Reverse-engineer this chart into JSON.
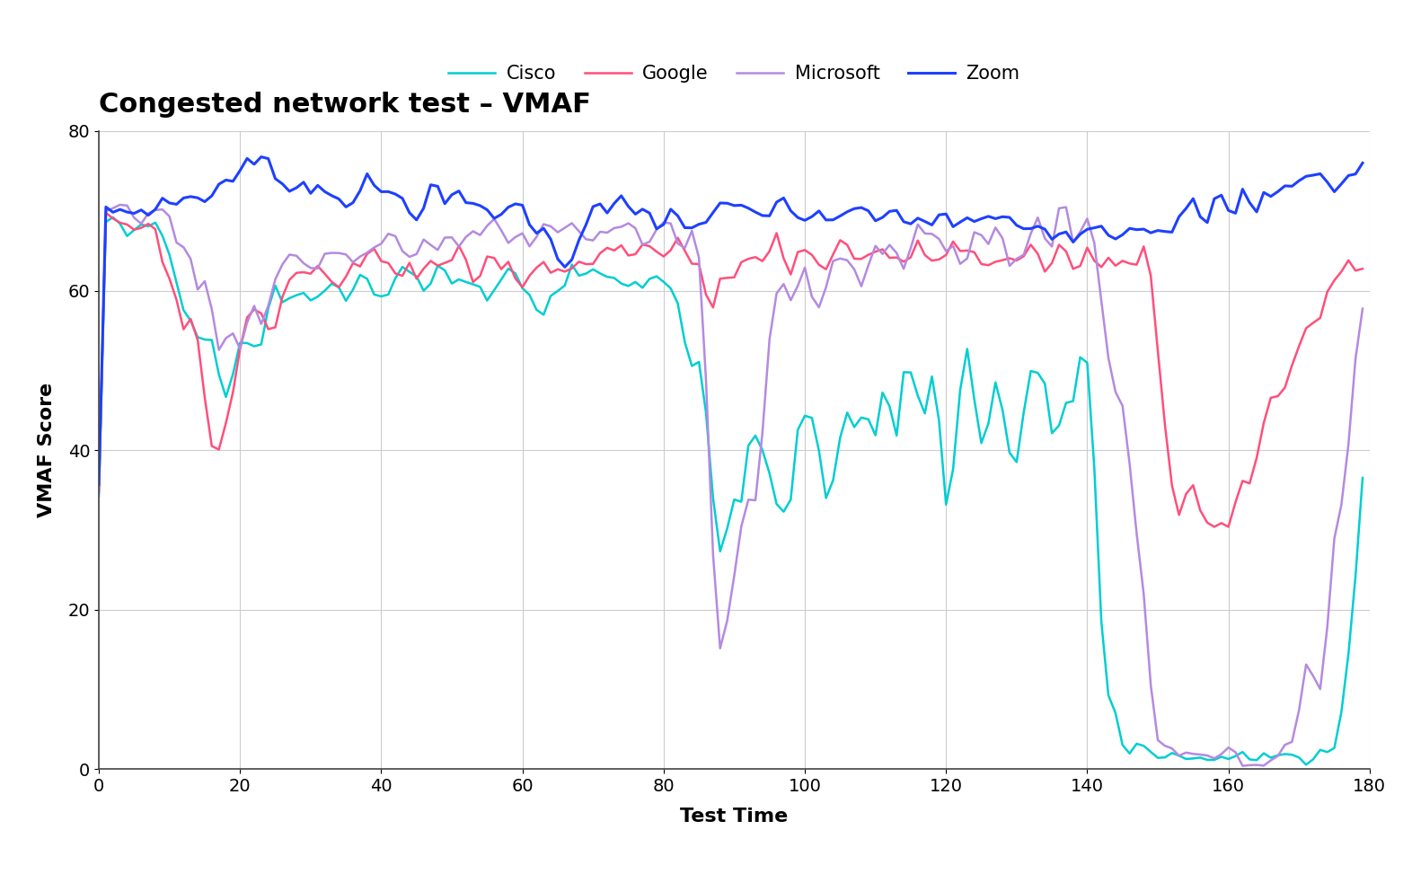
{
  "title": "Congested network test – VMAF",
  "xlabel": "Test Time",
  "ylabel": "VMAF Score",
  "xlim": [
    0,
    180
  ],
  "ylim": [
    0,
    80
  ],
  "xticks": [
    0,
    20,
    40,
    60,
    80,
    100,
    120,
    140,
    160,
    180
  ],
  "yticks": [
    0,
    20,
    40,
    60,
    80
  ],
  "colors": {
    "Cisco": "#00CED1",
    "Google": "#FF4F7B",
    "Microsoft": "#B48AE0",
    "Zoom": "#1E40FF"
  },
  "background_color": "#ffffff",
  "grid_color": "#cccccc"
}
